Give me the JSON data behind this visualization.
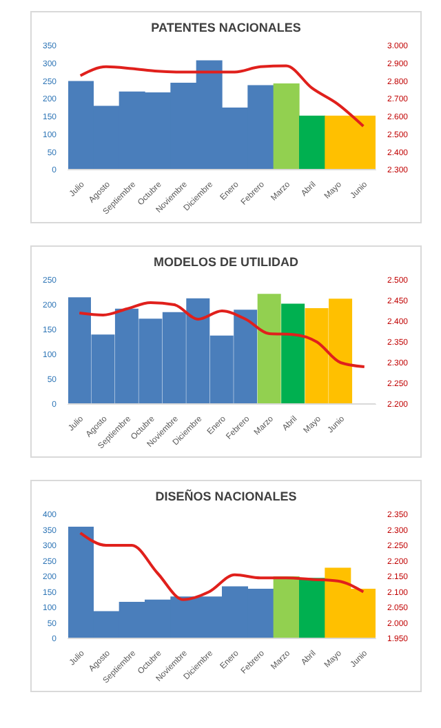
{
  "chart_data": [
    {
      "type": "bar",
      "title": "PATENTES NACIONALES",
      "categories": [
        "Julio",
        "Agosto",
        "Septiembre",
        "Octubre",
        "Noviembre",
        "Diciembre",
        "Enero",
        "Febrero",
        "Marzo",
        "Abril",
        "Mayo",
        "Junio"
      ],
      "series": [
        {
          "colors": [
            "#4a7ebb",
            "#4a7ebb",
            "#4a7ebb",
            "#4a7ebb",
            "#4a7ebb",
            "#4a7ebb",
            "#4a7ebb",
            "#4a7ebb",
            "#92d050",
            "#00b050",
            "#ffc000",
            "#ffc000"
          ],
          "values": [
            250,
            180,
            220,
            218,
            245,
            308,
            175,
            238,
            243,
            152,
            152,
            152
          ]
        },
        {
          "type": "line",
          "axis": "y2",
          "color": "#e0201c",
          "values": [
            2830,
            2880,
            2870,
            2855,
            2850,
            2850,
            2850,
            2880,
            2885,
            2760,
            2670,
            2545
          ]
        }
      ],
      "ylim": [
        0,
        350
      ],
      "yticks": [
        0,
        50,
        100,
        150,
        200,
        250,
        300,
        350
      ],
      "y2lim": [
        2300,
        3000
      ],
      "y2ticks": [
        {
          "value": 2300,
          "label": "2.300"
        },
        {
          "value": 2400,
          "label": "2.400"
        },
        {
          "value": 2500,
          "label": "2.500"
        },
        {
          "value": 2600,
          "label": "2.600"
        },
        {
          "value": 2700,
          "label": "2.700"
        },
        {
          "value": 2800,
          "label": "2.800"
        },
        {
          "value": 2900,
          "label": "2.900"
        },
        {
          "value": 3000,
          "label": "3.000"
        }
      ]
    },
    {
      "type": "bar",
      "title": "MODELOS DE UTILIDAD",
      "categories": [
        "Julio",
        "Agosto",
        "Septiembre",
        "Octubre",
        "Noviembre",
        "Diciembre",
        "Enero",
        "Febrero",
        "Marzo",
        "Abril",
        "Mayo",
        "Junio",
        null
      ],
      "series": [
        {
          "colors": [
            "#4a7ebb",
            "#4a7ebb",
            "#4a7ebb",
            "#4a7ebb",
            "#4a7ebb",
            "#4a7ebb",
            "#4a7ebb",
            "#4a7ebb",
            "#92d050",
            "#00b050",
            "#ffc000",
            "#ffc000",
            null
          ],
          "values": [
            215,
            140,
            192,
            172,
            185,
            213,
            138,
            190,
            222,
            202,
            193,
            212,
            null
          ]
        },
        {
          "type": "line",
          "axis": "y2",
          "color": "#e0201c",
          "values": [
            2420,
            2415,
            2430,
            2445,
            2440,
            2405,
            2425,
            2405,
            2370,
            2368,
            2350,
            2300,
            2290
          ]
        }
      ],
      "ylim": [
        0,
        250
      ],
      "yticks": [
        0,
        50,
        100,
        150,
        200,
        250
      ],
      "y2lim": [
        2200,
        2500
      ],
      "y2ticks": [
        {
          "value": 2200,
          "label": "2.200"
        },
        {
          "value": 2250,
          "label": "2.250"
        },
        {
          "value": 2300,
          "label": "2.300"
        },
        {
          "value": 2350,
          "label": "2.350"
        },
        {
          "value": 2400,
          "label": "2.400"
        },
        {
          "value": 2450,
          "label": "2.450"
        },
        {
          "value": 2500,
          "label": "2.500"
        }
      ]
    },
    {
      "type": "bar",
      "title": "DISEÑOS NACIONALES",
      "categories": [
        "Julio",
        "Agosto",
        "Septiembre",
        "Octubre",
        "Noviembre",
        "Diciembre",
        "Enero",
        "Febrero",
        "Marzo",
        "Abril",
        "Mayo",
        "Junio"
      ],
      "series": [
        {
          "colors": [
            "#4a7ebb",
            "#4a7ebb",
            "#4a7ebb",
            "#4a7ebb",
            "#4a7ebb",
            "#4a7ebb",
            "#4a7ebb",
            "#4a7ebb",
            "#92d050",
            "#00b050",
            "#ffc000",
            "#ffc000"
          ],
          "values": [
            360,
            88,
            118,
            125,
            135,
            135,
            168,
            160,
            200,
            195,
            228,
            160
          ]
        },
        {
          "type": "line",
          "axis": "y2",
          "color": "#e0201c",
          "values": [
            2290,
            2250,
            2250,
            2160,
            2075,
            2100,
            2155,
            2145,
            2145,
            2140,
            2135,
            2100
          ]
        }
      ],
      "ylim": [
        0,
        400
      ],
      "yticks": [
        0,
        50,
        100,
        150,
        200,
        250,
        300,
        350,
        400
      ],
      "y2lim": [
        1950,
        2350
      ],
      "y2ticks": [
        {
          "value": 1950,
          "label": "1.950"
        },
        {
          "value": 2000,
          "label": "2.000"
        },
        {
          "value": 2050,
          "label": "2.050"
        },
        {
          "value": 2100,
          "label": "2.100"
        },
        {
          "value": 2150,
          "label": "2.150"
        },
        {
          "value": 2200,
          "label": "2.200"
        },
        {
          "value": 2250,
          "label": "2.250"
        },
        {
          "value": 2300,
          "label": "2.300"
        },
        {
          "value": 2350,
          "label": "2.350"
        }
      ]
    }
  ]
}
